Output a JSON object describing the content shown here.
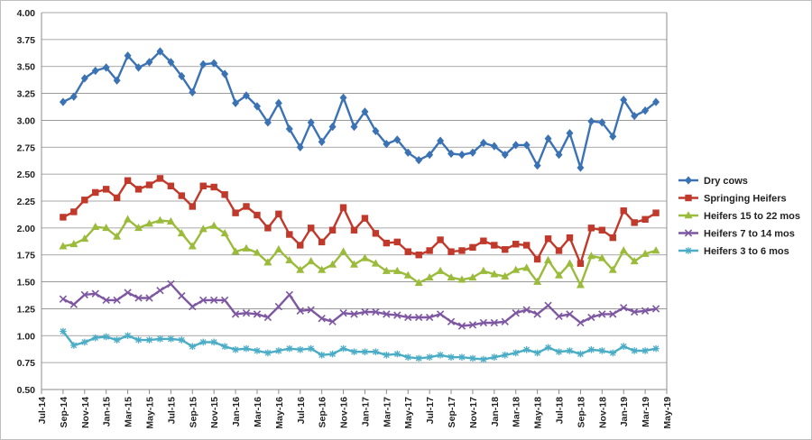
{
  "chart_data": {
    "type": "line",
    "title": "",
    "xlabel": "",
    "ylabel": "",
    "ylim": [
      0.5,
      4.0
    ],
    "yticks": [
      "0.50",
      "0.75",
      "1.00",
      "1.25",
      "1.50",
      "1.75",
      "2.00",
      "2.25",
      "2.50",
      "2.75",
      "3.00",
      "3.25",
      "3.50",
      "3.75",
      "4.00"
    ],
    "ygrid": true,
    "legend_position": "right",
    "x_tick_labels": [
      "Jul-14",
      "Sep-14",
      "Nov-14",
      "Jan-15",
      "Mar-15",
      "May-15",
      "Jul-15",
      "Sep-15",
      "Nov-15",
      "Jan-16",
      "Mar-16",
      "May-16",
      "Jul-16",
      "Sep-16",
      "Nov-16",
      "Jan-17",
      "Mar-17",
      "May-17",
      "Jul-17",
      "Sep-17",
      "Nov-17",
      "Jan-18",
      "Mar-18",
      "May-18",
      "Jul-18",
      "Sep-18",
      "Nov-18",
      "Jan-19",
      "Mar-19",
      "May-19"
    ],
    "x_tick_months": [
      0,
      2,
      4,
      6,
      8,
      10,
      12,
      14,
      16,
      18,
      20,
      22,
      24,
      26,
      28,
      30,
      32,
      34,
      36,
      38,
      40,
      42,
      44,
      46,
      48,
      50,
      52,
      54,
      56,
      58
    ],
    "x_range": [
      0,
      58
    ],
    "x_months": [
      2,
      3,
      4,
      5,
      6,
      7,
      8,
      9,
      10,
      11,
      12,
      13,
      14,
      15,
      16,
      17,
      18,
      19,
      20,
      21,
      22,
      23,
      24,
      25,
      26,
      27,
      28,
      29,
      30,
      31,
      32,
      33,
      34,
      35,
      36,
      37,
      38,
      39,
      40,
      41,
      42,
      43,
      44,
      45,
      46,
      47,
      48,
      49,
      50,
      51,
      52,
      53,
      54,
      55,
      56,
      57
    ],
    "series": [
      {
        "name": "Dry cows",
        "color": "#3B72B4",
        "marker": "diamond",
        "values": [
          3.17,
          3.22,
          3.39,
          3.46,
          3.49,
          3.37,
          3.6,
          3.49,
          3.54,
          3.64,
          3.54,
          3.41,
          3.26,
          3.52,
          3.53,
          3.43,
          3.16,
          3.23,
          3.13,
          2.98,
          3.16,
          2.92,
          2.75,
          2.98,
          2.8,
          2.94,
          3.21,
          2.94,
          3.08,
          2.9,
          2.78,
          2.82,
          2.7,
          2.63,
          2.68,
          2.81,
          2.69,
          2.68,
          2.7,
          2.79,
          2.76,
          2.68,
          2.77,
          2.77,
          2.58,
          2.83,
          2.68,
          2.88,
          2.56,
          2.99,
          2.98,
          2.85,
          3.19,
          3.04,
          3.09,
          3.17
        ]
      },
      {
        "name": "Springing Heifers",
        "color": "#C0392B",
        "marker": "square",
        "values": [
          2.1,
          2.15,
          2.26,
          2.33,
          2.36,
          2.28,
          2.44,
          2.36,
          2.4,
          2.46,
          2.39,
          2.3,
          2.2,
          2.39,
          2.38,
          2.31,
          2.14,
          2.2,
          2.12,
          2.0,
          2.13,
          1.94,
          1.84,
          2.0,
          1.87,
          1.98,
          2.19,
          1.98,
          2.09,
          1.95,
          1.86,
          1.87,
          1.78,
          1.75,
          1.79,
          1.89,
          1.78,
          1.79,
          1.82,
          1.88,
          1.84,
          1.8,
          1.85,
          1.84,
          1.71,
          1.9,
          1.79,
          1.91,
          1.67,
          2.0,
          1.98,
          1.91,
          2.16,
          2.05,
          2.08,
          2.14
        ]
      },
      {
        "name": "Heifers  15 to 22 mos",
        "color": "#9BBB3B",
        "marker": "triangle",
        "values": [
          1.83,
          1.85,
          1.9,
          2.01,
          2.0,
          1.92,
          2.08,
          2.0,
          2.04,
          2.07,
          2.06,
          1.95,
          1.83,
          1.99,
          2.02,
          1.95,
          1.78,
          1.81,
          1.77,
          1.68,
          1.8,
          1.7,
          1.61,
          1.69,
          1.61,
          1.66,
          1.78,
          1.66,
          1.72,
          1.67,
          1.6,
          1.6,
          1.56,
          1.49,
          1.54,
          1.6,
          1.54,
          1.52,
          1.54,
          1.6,
          1.57,
          1.55,
          1.61,
          1.63,
          1.5,
          1.7,
          1.56,
          1.67,
          1.47,
          1.74,
          1.72,
          1.61,
          1.79,
          1.69,
          1.76,
          1.79
        ]
      },
      {
        "name": "Heifers  7 to 14 mos",
        "color": "#7E57A2",
        "marker": "x",
        "values": [
          1.34,
          1.29,
          1.38,
          1.39,
          1.33,
          1.33,
          1.4,
          1.35,
          1.35,
          1.42,
          1.48,
          1.37,
          1.27,
          1.33,
          1.33,
          1.33,
          1.2,
          1.21,
          1.2,
          1.17,
          1.27,
          1.38,
          1.23,
          1.24,
          1.16,
          1.13,
          1.21,
          1.2,
          1.22,
          1.22,
          1.2,
          1.19,
          1.17,
          1.17,
          1.17,
          1.2,
          1.13,
          1.09,
          1.1,
          1.12,
          1.12,
          1.13,
          1.21,
          1.24,
          1.2,
          1.28,
          1.18,
          1.2,
          1.12,
          1.17,
          1.2,
          1.2,
          1.26,
          1.22,
          1.23,
          1.25
        ]
      },
      {
        "name": "Heifers 3 to 6 mos",
        "color": "#4BACC6",
        "marker": "star",
        "values": [
          1.04,
          0.91,
          0.94,
          0.98,
          0.99,
          0.96,
          1.0,
          0.96,
          0.96,
          0.97,
          0.97,
          0.96,
          0.9,
          0.94,
          0.94,
          0.9,
          0.87,
          0.88,
          0.86,
          0.84,
          0.86,
          0.88,
          0.87,
          0.88,
          0.82,
          0.83,
          0.88,
          0.85,
          0.85,
          0.85,
          0.82,
          0.83,
          0.8,
          0.79,
          0.8,
          0.82,
          0.8,
          0.8,
          0.79,
          0.78,
          0.8,
          0.82,
          0.84,
          0.87,
          0.84,
          0.89,
          0.85,
          0.86,
          0.83,
          0.87,
          0.86,
          0.84,
          0.9,
          0.86,
          0.86,
          0.88
        ]
      }
    ]
  }
}
